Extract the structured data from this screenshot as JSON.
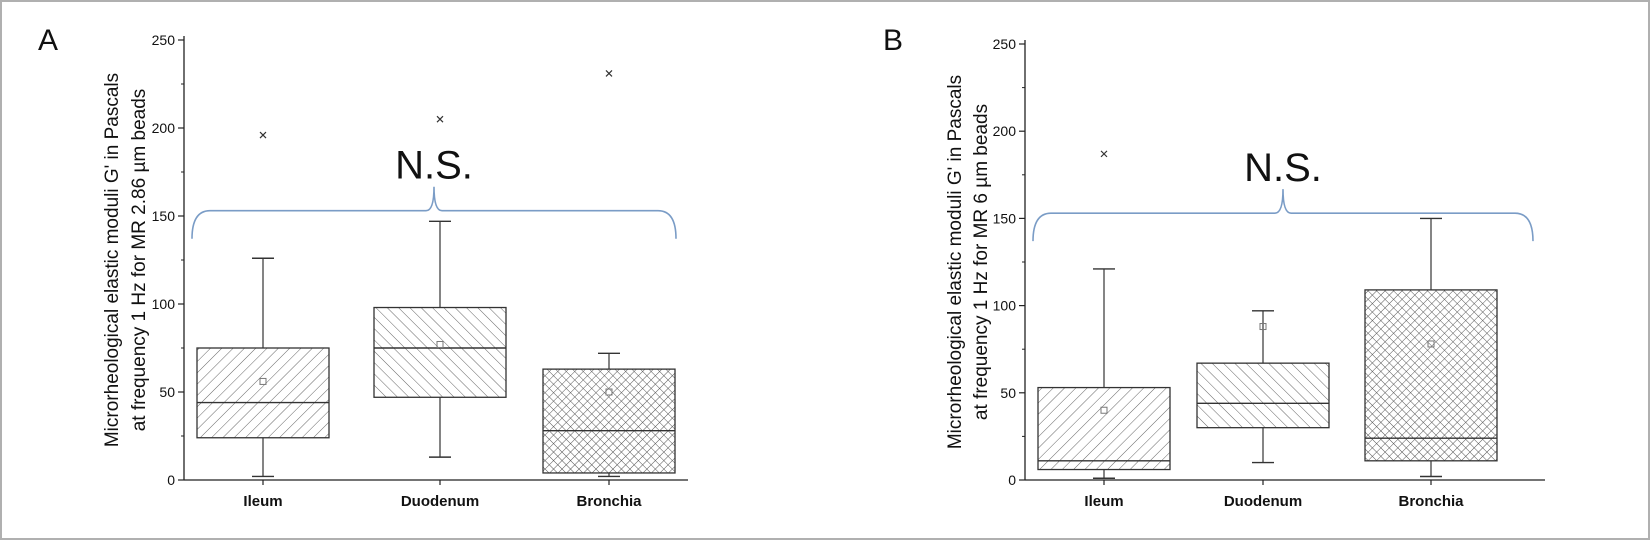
{
  "chart_data": [
    {
      "type": "box",
      "panel": "A",
      "ylabel_line1": "Microrheological elastic moduli G' in Pascals",
      "ylabel_line2": "at frequency 1 Hz for MR 2.86 µm beads",
      "ylim": [
        0,
        250
      ],
      "yticks": [
        0,
        50,
        100,
        150,
        200,
        250
      ],
      "categories": [
        "Ileum",
        "Duodenum",
        "Bronchia"
      ],
      "boxes": [
        {
          "whisker_low": 2,
          "q1": 24,
          "median": 44,
          "q3": 75,
          "whisker_high": 126,
          "mean": 56,
          "outliers": [
            196
          ]
        },
        {
          "whisker_low": 13,
          "q1": 47,
          "median": 75,
          "q3": 98,
          "whisker_high": 147,
          "mean": 77,
          "outliers": [
            205
          ]
        },
        {
          "whisker_low": 2,
          "q1": 4,
          "median": 28,
          "q3": 63,
          "whisker_high": 72,
          "mean": 50,
          "outliers": [
            231
          ]
        }
      ],
      "significance": {
        "label": "N.S.",
        "y": 153
      }
    },
    {
      "type": "box",
      "panel": "B",
      "ylabel_line1": "Microrheological elastic moduli G' in Pascals",
      "ylabel_line2": "at frequency 1 Hz for MR 6 µm beads",
      "ylim": [
        0,
        250
      ],
      "yticks": [
        0,
        50,
        100,
        150,
        200,
        250
      ],
      "categories": [
        "Ileum",
        "Duodenum",
        "Bronchia"
      ],
      "boxes": [
        {
          "whisker_low": 1,
          "q1": 6,
          "median": 11,
          "q3": 53,
          "whisker_high": 121,
          "mean": 40,
          "outliers": [
            187
          ]
        },
        {
          "whisker_low": 10,
          "q1": 30,
          "median": 44,
          "q3": 67,
          "whisker_high": 97,
          "mean": 88,
          "outliers": []
        },
        {
          "whisker_low": 2,
          "q1": 11,
          "median": 24,
          "q3": 109,
          "whisker_high": 150,
          "mean": 78,
          "outliers": []
        }
      ],
      "significance": {
        "label": "N.S.",
        "y": 153
      }
    }
  ],
  "colors": {
    "axis": "#222222",
    "box_stroke": "#333333",
    "hatch": "#555555",
    "bracket": "#7a9cc6",
    "frame": "#b0b0b0"
  }
}
